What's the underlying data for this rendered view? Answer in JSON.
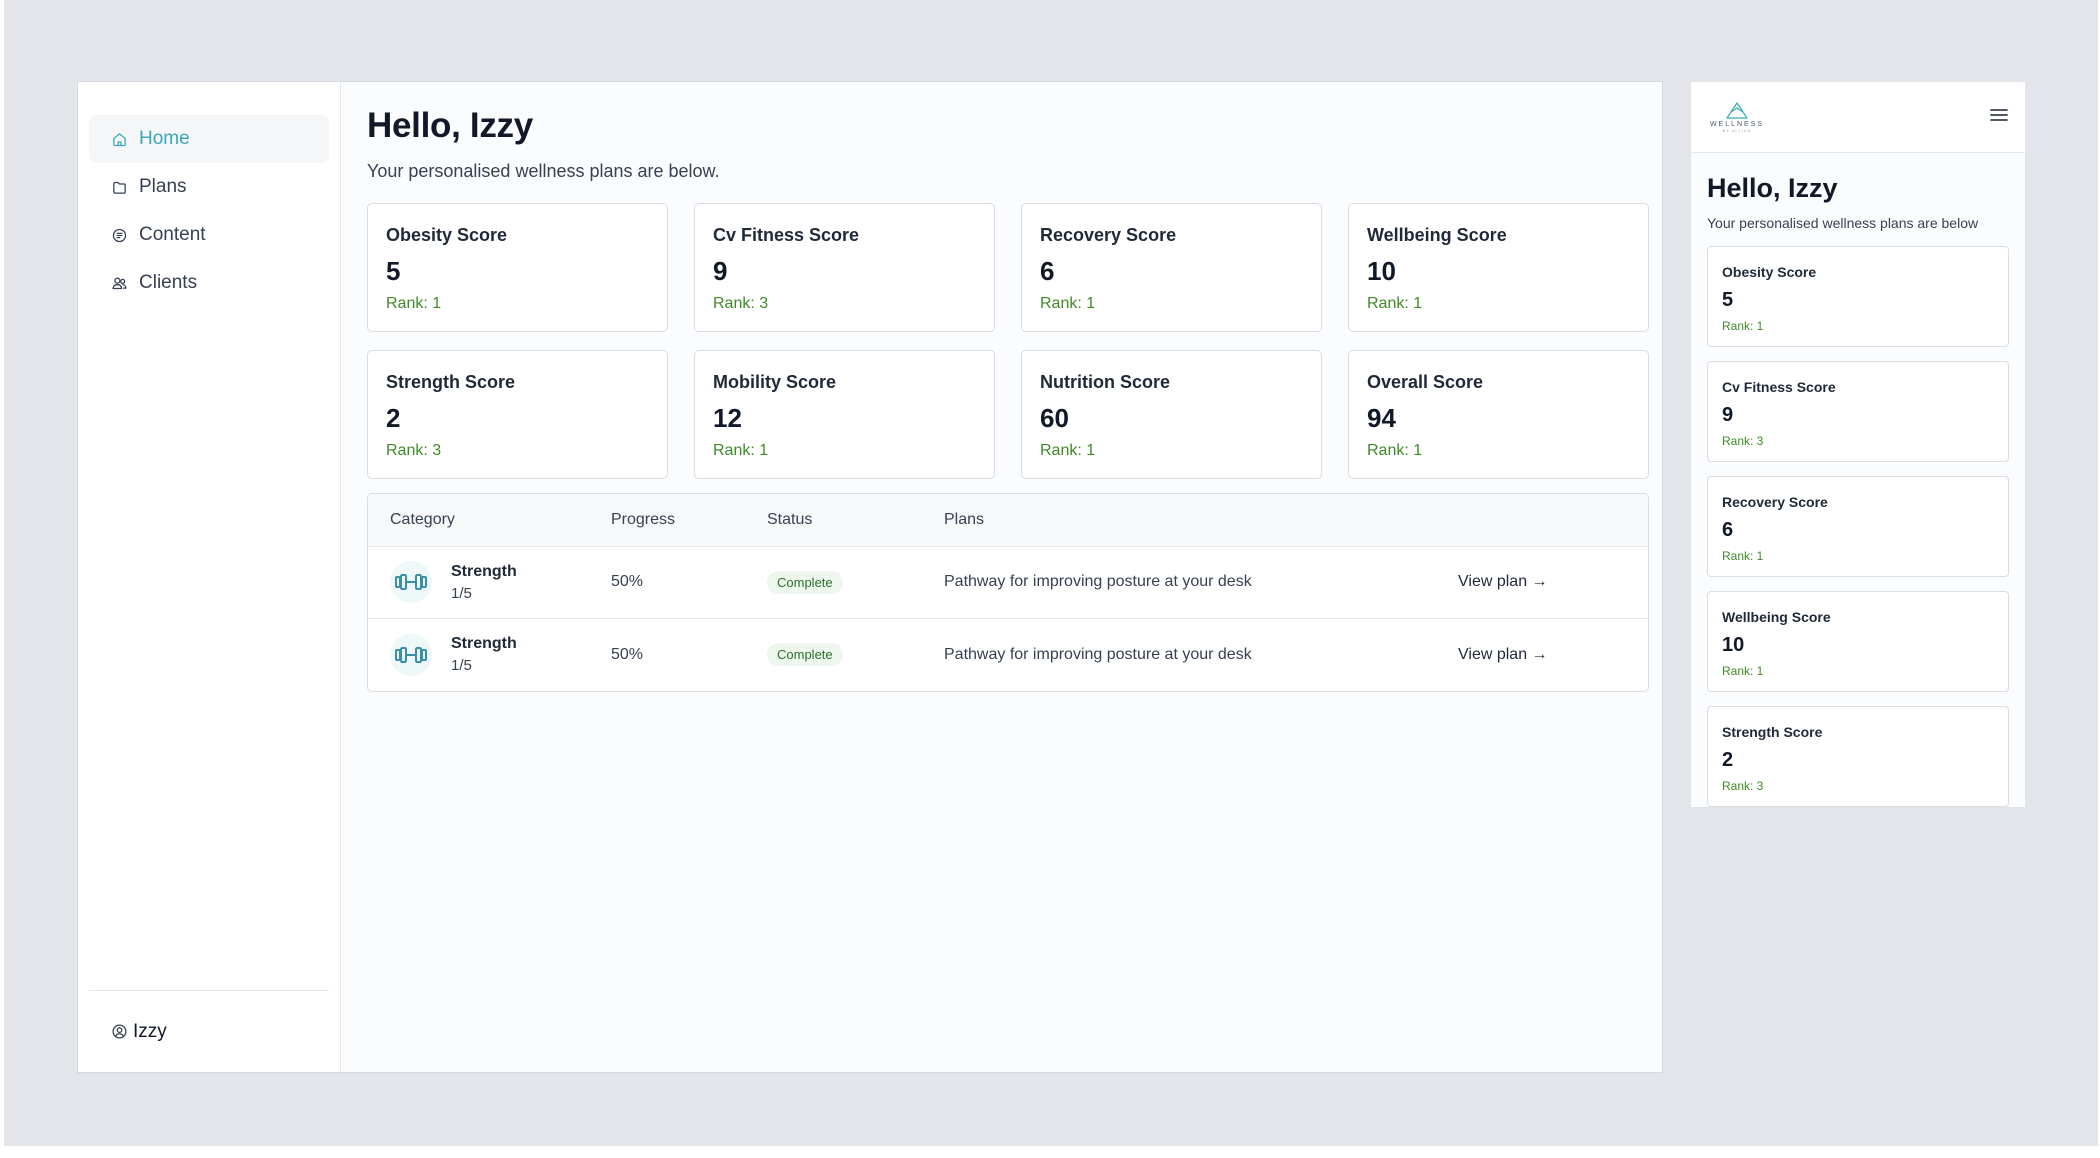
{
  "sidebar": {
    "items": [
      {
        "label": "Home",
        "icon": "home-icon",
        "active": true
      },
      {
        "label": "Plans",
        "icon": "folder-icon"
      },
      {
        "label": "Content",
        "icon": "content-icon"
      },
      {
        "label": "Clients",
        "icon": "users-icon"
      }
    ],
    "user": "Izzy"
  },
  "main": {
    "title": "Hello, Izzy",
    "subtitle": "Your personalised wellness plans are below.",
    "scores": [
      {
        "label": "Obesity Score",
        "value": "5",
        "rank": "Rank: 1"
      },
      {
        "label": "Cv Fitness Score",
        "value": "9",
        "rank": "Rank: 3"
      },
      {
        "label": "Recovery Score",
        "value": "6",
        "rank": "Rank: 1"
      },
      {
        "label": "Wellbeing Score",
        "value": "10",
        "rank": "Rank: 1"
      },
      {
        "label": "Strength Score",
        "value": "2",
        "rank": "Rank: 3"
      },
      {
        "label": "Mobility Score",
        "value": "12",
        "rank": "Rank: 1"
      },
      {
        "label": "Nutrition Score",
        "value": "60",
        "rank": "Rank: 1"
      },
      {
        "label": "Overall Score",
        "value": "94",
        "rank": "Rank: 1"
      }
    ],
    "table": {
      "headers": [
        "Category",
        "Progress",
        "Status",
        "Plans",
        ""
      ],
      "rows": [
        {
          "category": "Strength",
          "count": "1/5",
          "icon": "dumbbell-icon",
          "progress": "50%",
          "status": "Complete",
          "plan": "Pathway for improving posture at your desk",
          "action": "View plan →"
        },
        {
          "category": "Strength",
          "count": "1/5",
          "icon": "dumbbell-icon",
          "progress": "50%",
          "status": "Complete",
          "plan": "Pathway for improving posture at your desk",
          "action": "View plan →"
        }
      ]
    }
  },
  "mobile": {
    "brand": "WELLNESS",
    "brand_sub": "BY ALTIUS",
    "title": "Hello, Izzy",
    "subtitle": "Your personalised wellness plans are below",
    "scores": [
      {
        "label": "Obesity Score",
        "value": "5",
        "rank": "Rank: 1"
      },
      {
        "label": "Cv Fitness Score",
        "value": "9",
        "rank": "Rank: 3"
      },
      {
        "label": "Recovery Score",
        "value": "6",
        "rank": "Rank: 1"
      },
      {
        "label": "Wellbeing Score",
        "value": "10",
        "rank": "Rank: 1"
      },
      {
        "label": "Strength Score",
        "value": "2",
        "rank": "Rank: 3"
      }
    ]
  },
  "colors": {
    "accent": "#3aa9b7",
    "rank_green": "#3f8a26",
    "badge_bg": "#eef7ee",
    "backdrop": "#e3e5ea"
  }
}
